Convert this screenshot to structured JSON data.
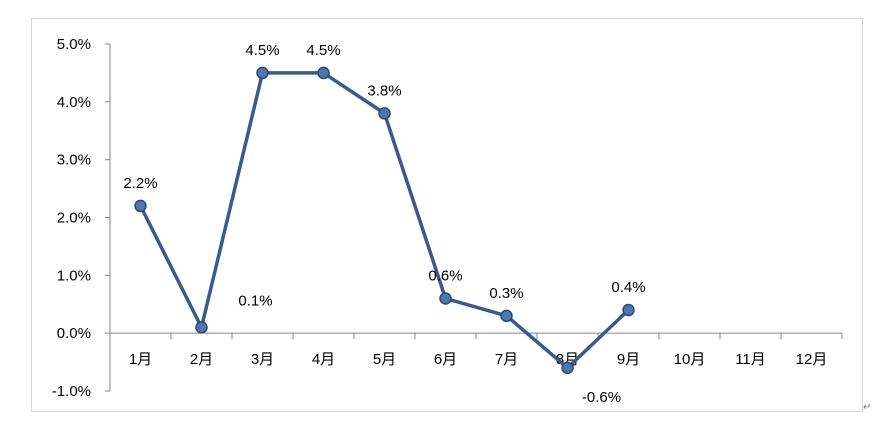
{
  "chart_data": {
    "type": "line",
    "title": "",
    "xlabel": "",
    "ylabel": "",
    "categories": [
      "1月",
      "2月",
      "3月",
      "4月",
      "5月",
      "6月",
      "7月",
      "8月",
      "9月",
      "10月",
      "11月",
      "12月"
    ],
    "series": [
      {
        "values": [
          2.2,
          0.1,
          4.5,
          4.5,
          3.8,
          0.6,
          0.3,
          -0.6,
          0.4,
          null,
          null,
          null
        ],
        "labels": [
          "2.2%",
          "0.1%",
          "4.5%",
          "4.5%",
          "3.8%",
          "0.6%",
          "0.3%",
          "-0.6%",
          "0.4%",
          null,
          null,
          null
        ],
        "color": "#3a5a8c"
      }
    ],
    "ylim": [
      -1.0,
      5.0
    ],
    "yticks": [
      5.0,
      4.0,
      3.0,
      2.0,
      1.0,
      0.0,
      -1.0
    ],
    "ytick_labels": [
      "5.0%",
      "4.0%",
      "3.0%",
      "2.0%",
      "1.0%",
      "0.0%",
      "-1.0%"
    ],
    "grid": false,
    "legend": "none"
  },
  "return_mark": "↵"
}
